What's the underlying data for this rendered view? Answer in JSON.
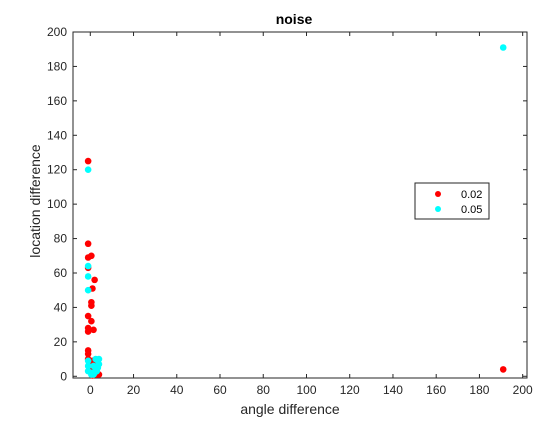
{
  "chart_data": {
    "type": "scatter",
    "title": "noise",
    "xlabel": "angle difference",
    "ylabel": "location difference",
    "xlim": [
      -8,
      202
    ],
    "ylim": [
      -1,
      200
    ],
    "xticks": [
      0,
      20,
      40,
      60,
      80,
      100,
      120,
      140,
      160,
      180,
      200
    ],
    "yticks": [
      0,
      20,
      40,
      60,
      80,
      100,
      120,
      140,
      160,
      180,
      200
    ],
    "grid": false,
    "legend": {
      "placement": "right-center",
      "box": true
    },
    "series": [
      {
        "name": "0.02",
        "color": "#ff0000",
        "points": [
          [
            -1,
            125
          ],
          [
            -1,
            77
          ],
          [
            0.5,
            70
          ],
          [
            -1,
            69
          ],
          [
            -1,
            63
          ],
          [
            2,
            56
          ],
          [
            1,
            51
          ],
          [
            0.5,
            43
          ],
          [
            0.5,
            41
          ],
          [
            -1,
            35
          ],
          [
            0.5,
            32
          ],
          [
            -1,
            28
          ],
          [
            1.5,
            27
          ],
          [
            -1,
            26
          ],
          [
            -1,
            15
          ],
          [
            -1,
            13
          ],
          [
            -1,
            10
          ],
          [
            1,
            9
          ],
          [
            0.5,
            6
          ],
          [
            2,
            7
          ],
          [
            1,
            4
          ],
          [
            3,
            3
          ],
          [
            2,
            2
          ],
          [
            4,
            1
          ],
          [
            3,
            1
          ],
          [
            1,
            0.5
          ],
          [
            191,
            4
          ]
        ]
      },
      {
        "name": "0.05",
        "color": "#00ffff",
        "points": [
          [
            -1,
            120
          ],
          [
            -1,
            64
          ],
          [
            -1,
            58
          ],
          [
            -1,
            50
          ],
          [
            -1,
            9
          ],
          [
            -1,
            6
          ],
          [
            -1,
            3
          ],
          [
            0.5,
            1
          ],
          [
            1.5,
            1
          ],
          [
            2,
            2
          ],
          [
            3,
            3
          ],
          [
            3.5,
            5
          ],
          [
            4,
            7
          ],
          [
            3.5,
            9
          ],
          [
            2.5,
            10
          ],
          [
            4,
            10
          ],
          [
            1.5,
            6
          ],
          [
            2.5,
            4
          ],
          [
            0.5,
            2
          ],
          [
            191,
            191
          ]
        ]
      }
    ]
  }
}
